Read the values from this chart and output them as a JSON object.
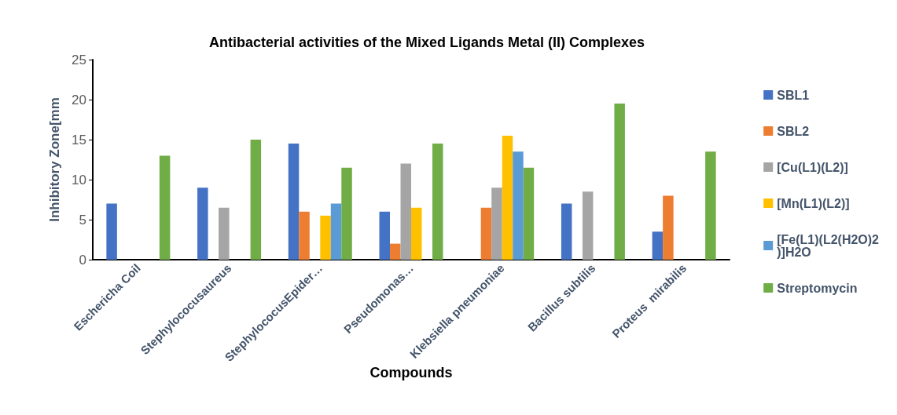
{
  "chart_data": {
    "type": "bar",
    "title": "Antibacterial activities of the Mixed Ligands Metal (II) Complexes",
    "xlabel": "Compounds",
    "ylabel": "Inhibitory Zone[mm",
    "categories": [
      "Eschericha Coil",
      "Stephylococusaureus",
      "StephylococusEpider…",
      "Pseudomonas…",
      "Klebsiella pneumoniae",
      "Bacillus subtilis",
      "Proteus  mirabilis"
    ],
    "series": [
      {
        "name": "SBL1",
        "color": "#4472c4",
        "values": [
          7,
          9,
          14.5,
          6,
          null,
          7,
          3.5
        ]
      },
      {
        "name": "SBL2",
        "color": "#ed7d31",
        "values": [
          null,
          null,
          6,
          2,
          6.5,
          null,
          8
        ]
      },
      {
        "name": "[Cu(L1)(L2)]",
        "color": "#a5a5a5",
        "values": [
          null,
          6.5,
          null,
          12,
          9,
          8.5,
          null
        ]
      },
      {
        "name": "[Mn(L1)(L2)]",
        "color": "#ffc000",
        "values": [
          null,
          null,
          5.5,
          6.5,
          15.5,
          null,
          null
        ]
      },
      {
        "name": "[Fe(L1)(L2(H2O)2)]H2O",
        "color": "#5b9bd5",
        "values": [
          null,
          null,
          7,
          null,
          13.5,
          null,
          null
        ]
      },
      {
        "name": "Streptomycin",
        "color": "#70ad47",
        "values": [
          13,
          15,
          11.5,
          14.5,
          11.5,
          19.5,
          13.5
        ]
      }
    ],
    "ylim": [
      0,
      25
    ],
    "yticks": [
      0,
      5,
      10,
      15,
      20,
      25
    ],
    "grid": false,
    "legend": "right"
  }
}
